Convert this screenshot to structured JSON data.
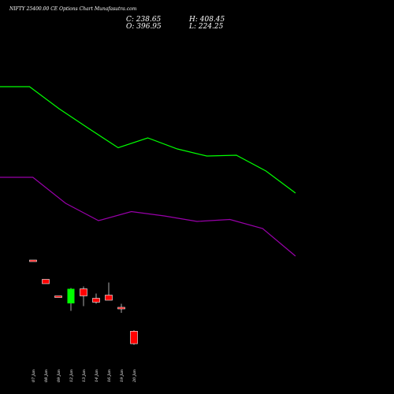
{
  "header": {
    "title": "NIFTY 25400.00 CE Options Chart Munafasutra.com",
    "close_text": "C: 238.65",
    "open_text": "O: 396.95",
    "high_text": "H: 408.45",
    "low_text": "L: 224.25"
  },
  "colors": {
    "background": "#000000",
    "up_candle": "#00ff00",
    "down_candle": "#ff0000",
    "upper_band": "#00ff00",
    "lower_band": "#9900aa",
    "wick": "#aaaaaa",
    "text": "#ffffff"
  },
  "chart_data": {
    "type": "candlestick",
    "title": "NIFTY 25400.00 CE Options Chart Munafasutra.com",
    "categories": [
      "07 Jan",
      "08 Jan",
      "09 Jan",
      "12 Jan",
      "13 Jan",
      "14 Jan",
      "16 Jan",
      "19 Jan",
      "20 Jan"
    ],
    "candles": [
      {
        "date": "07 Jan",
        "open": 1300,
        "high": 1300,
        "low": 1300,
        "close": 1300
      },
      {
        "date": "08 Jan",
        "open": 1055,
        "high": 1055,
        "low": 1000,
        "close": 1000
      },
      {
        "date": "09 Jan",
        "open": 845,
        "high": 845,
        "low": 845,
        "close": 845
      },
      {
        "date": "12 Jan",
        "open": 750,
        "high": 945,
        "low": 655,
        "close": 935
      },
      {
        "date": "13 Jan",
        "open": 935,
        "high": 965,
        "low": 715,
        "close": 845
      },
      {
        "date": "14 Jan",
        "open": 815,
        "high": 875,
        "low": 745,
        "close": 765
      },
      {
        "date": "16 Jan",
        "open": 855,
        "high": 1015,
        "low": 790,
        "close": 790
      },
      {
        "date": "19 Jan",
        "open": 700,
        "high": 745,
        "low": 630,
        "close": 690
      },
      {
        "date": "20 Jan",
        "open": 396.95,
        "high": 408.45,
        "low": 224.25,
        "close": 238.65
      }
    ],
    "upper_band": [
      3500,
      3500,
      3220,
      2970,
      2725,
      2850,
      2710,
      2620,
      2630,
      2430,
      2150
    ],
    "lower_band": [
      2350,
      2350,
      2020,
      1800,
      1915,
      1860,
      1790,
      1815,
      1700,
      1350
    ],
    "ylim": [
      0,
      4000
    ]
  }
}
